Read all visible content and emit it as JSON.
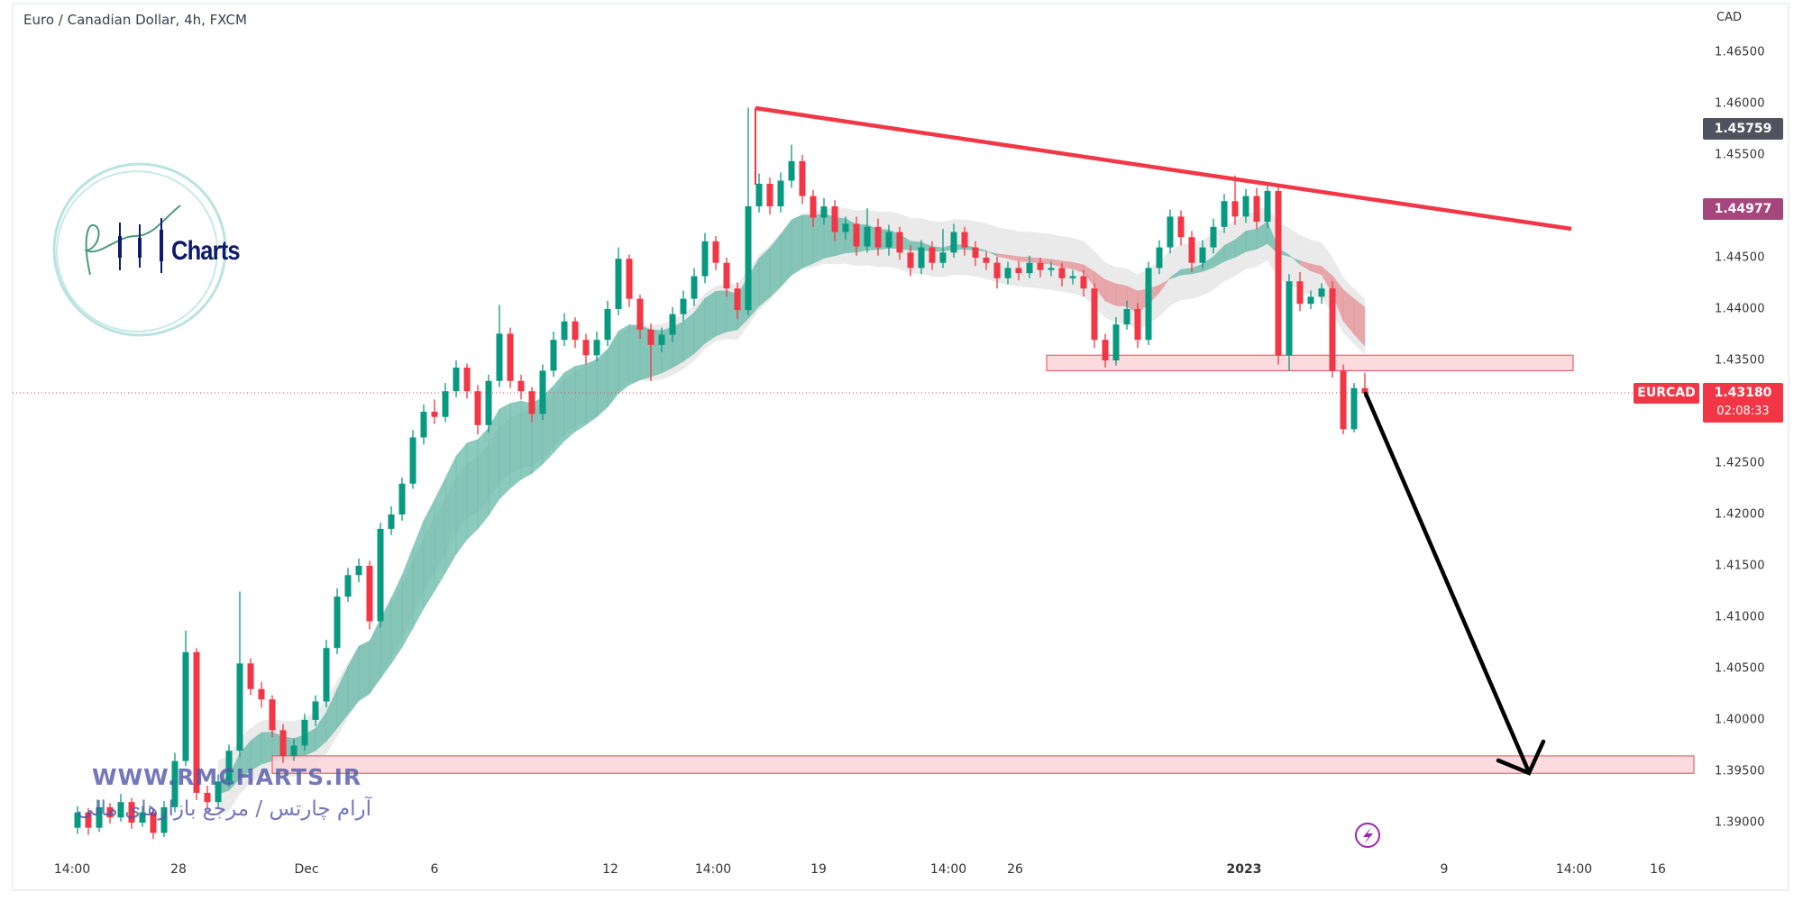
{
  "header": {
    "title": "Euro / Canadian Dollar, 4h, FXCM"
  },
  "price_axis": {
    "currency": "CAD",
    "labels": [
      "1.46500",
      "1.46000",
      "1.45500",
      "1.44500",
      "1.44000",
      "1.43500",
      "1.42500",
      "1.42000",
      "1.41500",
      "1.41000",
      "1.40500",
      "1.40000",
      "1.39500",
      "1.39000"
    ],
    "marker_high": {
      "value": "1.45759",
      "color": "#50535e"
    },
    "marker_indicator": {
      "value": "1.44977",
      "color": "#a5467d"
    },
    "symbol": "EURCAD",
    "last_price": "1.43180",
    "countdown": "02:08:33"
  },
  "time_axis": {
    "labels": [
      "14:00",
      "28",
      "Dec",
      "6",
      "12",
      "14:00",
      "19",
      "14:00",
      "26",
      "2023",
      "9",
      "14:00",
      "16"
    ]
  },
  "watermark": {
    "url": "WWW.RMCHARTS.IR",
    "tagline": "آرام چارتس / مرجع بازارهای مالی",
    "logo_text": "Charts",
    "logo_letters": "RM"
  },
  "icons": {
    "events": "lightning-icon"
  },
  "colors": {
    "up": "#089981",
    "down": "#f23645",
    "trendline": "#f23645",
    "zone_fill": "#fbd5d8",
    "zone_border": "#f0616d",
    "arrow": "#000000",
    "ribbon_up": "#5bb5a2",
    "ribbon_down": "#e58a8f",
    "envelope": "#e3e3e3"
  },
  "chart_data": {
    "type": "candlestick",
    "symbol": "EURCAD",
    "timeframe": "4h",
    "ylim": [
      1.3875,
      1.4675
    ],
    "last_price": 1.4318,
    "candles": [
      [
        1.3895,
        1.3916,
        1.3889,
        1.391
      ],
      [
        1.391,
        1.3914,
        1.3888,
        1.3895
      ],
      [
        1.3895,
        1.3922,
        1.3891,
        1.3915
      ],
      [
        1.3915,
        1.3919,
        1.3899,
        1.3905
      ],
      [
        1.3905,
        1.3928,
        1.3901,
        1.392
      ],
      [
        1.392,
        1.3924,
        1.3894,
        1.39
      ],
      [
        1.39,
        1.3916,
        1.3896,
        1.391
      ],
      [
        1.391,
        1.3913,
        1.3884,
        1.389
      ],
      [
        1.389,
        1.3921,
        1.3886,
        1.3915
      ],
      [
        1.3915,
        1.3968,
        1.391,
        1.396
      ],
      [
        1.396,
        1.4087,
        1.3955,
        1.4066
      ],
      [
        1.4066,
        1.407,
        1.3922,
        1.3929
      ],
      [
        1.3929,
        1.3936,
        1.3914,
        1.392
      ],
      [
        1.392,
        1.3947,
        1.3915,
        1.394
      ],
      [
        1.394,
        1.3976,
        1.3935,
        1.397
      ],
      [
        1.397,
        1.4125,
        1.3964,
        1.4055
      ],
      [
        1.4055,
        1.406,
        1.4024,
        1.403
      ],
      [
        1.403,
        1.4037,
        1.4012,
        1.402
      ],
      [
        1.402,
        1.4024,
        1.3983,
        1.399
      ],
      [
        1.399,
        1.3996,
        1.3958,
        1.3965
      ],
      [
        1.3965,
        1.3982,
        1.396,
        1.3975
      ],
      [
        1.3975,
        1.4006,
        1.397,
        1.4
      ],
      [
        1.4,
        1.4024,
        1.3994,
        1.4018
      ],
      [
        1.4018,
        1.4078,
        1.4012,
        1.407
      ],
      [
        1.407,
        1.4128,
        1.4064,
        1.412
      ],
      [
        1.412,
        1.4148,
        1.4115,
        1.4141
      ],
      [
        1.4141,
        1.4157,
        1.4134,
        1.415
      ],
      [
        1.415,
        1.4155,
        1.4088,
        1.4096
      ],
      [
        1.4096,
        1.4192,
        1.409,
        1.4186
      ],
      [
        1.4186,
        1.4208,
        1.418,
        1.42
      ],
      [
        1.42,
        1.4236,
        1.4194,
        1.423
      ],
      [
        1.423,
        1.4282,
        1.4225,
        1.4275
      ],
      [
        1.4275,
        1.4307,
        1.4268,
        1.43
      ],
      [
        1.43,
        1.4312,
        1.4288,
        1.4295
      ],
      [
        1.4295,
        1.4328,
        1.429,
        1.432
      ],
      [
        1.432,
        1.435,
        1.4314,
        1.4343
      ],
      [
        1.4343,
        1.4347,
        1.4313,
        1.432
      ],
      [
        1.432,
        1.4326,
        1.4278,
        1.4287
      ],
      [
        1.4287,
        1.4336,
        1.428,
        1.433
      ],
      [
        1.433,
        1.4404,
        1.4324,
        1.4376
      ],
      [
        1.4376,
        1.4382,
        1.4323,
        1.433
      ],
      [
        1.433,
        1.4336,
        1.4312,
        1.432
      ],
      [
        1.432,
        1.4324,
        1.429,
        1.4298
      ],
      [
        1.4298,
        1.4346,
        1.4292,
        1.434
      ],
      [
        1.434,
        1.4378,
        1.4334,
        1.437
      ],
      [
        1.437,
        1.4396,
        1.4364,
        1.4388
      ],
      [
        1.4388,
        1.4392,
        1.4362,
        1.437
      ],
      [
        1.437,
        1.4376,
        1.4346,
        1.4355
      ],
      [
        1.4355,
        1.4378,
        1.4349,
        1.437
      ],
      [
        1.437,
        1.4408,
        1.4364,
        1.44
      ],
      [
        1.44,
        1.446,
        1.4394,
        1.4449
      ],
      [
        1.4449,
        1.4453,
        1.4402,
        1.441
      ],
      [
        1.441,
        1.4414,
        1.4371,
        1.438
      ],
      [
        1.438,
        1.4386,
        1.433,
        1.4365
      ],
      [
        1.4365,
        1.4382,
        1.4358,
        1.4375
      ],
      [
        1.4375,
        1.4402,
        1.4368,
        1.4395
      ],
      [
        1.4395,
        1.4418,
        1.4388,
        1.441
      ],
      [
        1.441,
        1.444,
        1.4403,
        1.4432
      ],
      [
        1.4432,
        1.4474,
        1.4425,
        1.4466
      ],
      [
        1.4466,
        1.4471,
        1.4438,
        1.4445
      ],
      [
        1.4445,
        1.445,
        1.4412,
        1.442
      ],
      [
        1.442,
        1.4426,
        1.439,
        1.4399
      ],
      [
        1.4399,
        1.4596,
        1.4394,
        1.45
      ],
      [
        1.45,
        1.4532,
        1.4494,
        1.4522
      ],
      [
        1.4522,
        1.4528,
        1.4492,
        1.45
      ],
      [
        1.45,
        1.4533,
        1.4494,
        1.4525
      ],
      [
        1.4525,
        1.456,
        1.4518,
        1.4544
      ],
      [
        1.4544,
        1.455,
        1.4502,
        1.451
      ],
      [
        1.451,
        1.4516,
        1.448,
        1.4489
      ],
      [
        1.4489,
        1.4508,
        1.4482,
        1.45
      ],
      [
        1.45,
        1.4506,
        1.4466,
        1.4475
      ],
      [
        1.4475,
        1.449,
        1.4468,
        1.4483
      ],
      [
        1.4483,
        1.449,
        1.4452,
        1.4461
      ],
      [
        1.4461,
        1.4498,
        1.4455,
        1.448
      ],
      [
        1.448,
        1.4488,
        1.4452,
        1.446
      ],
      [
        1.446,
        1.4482,
        1.4452,
        1.4475
      ],
      [
        1.4475,
        1.448,
        1.4448,
        1.4455
      ],
      [
        1.4455,
        1.4462,
        1.4432,
        1.444
      ],
      [
        1.444,
        1.4467,
        1.4434,
        1.446
      ],
      [
        1.446,
        1.4466,
        1.4438,
        1.4445
      ],
      [
        1.4445,
        1.4478,
        1.444,
        1.4455
      ],
      [
        1.4455,
        1.4483,
        1.445,
        1.4475
      ],
      [
        1.4475,
        1.448,
        1.4452,
        1.446
      ],
      [
        1.446,
        1.4466,
        1.4442,
        1.445
      ],
      [
        1.445,
        1.4456,
        1.4438,
        1.4445
      ],
      [
        1.4445,
        1.4451,
        1.442,
        1.443
      ],
      [
        1.443,
        1.4446,
        1.4424,
        1.444
      ],
      [
        1.444,
        1.4446,
        1.4428,
        1.4435
      ],
      [
        1.4435,
        1.4452,
        1.443,
        1.4445
      ],
      [
        1.4445,
        1.445,
        1.4431,
        1.4438
      ],
      [
        1.4438,
        1.4446,
        1.4432,
        1.444
      ],
      [
        1.444,
        1.4445,
        1.4422,
        1.443
      ],
      [
        1.443,
        1.4438,
        1.4424,
        1.4432
      ],
      [
        1.4432,
        1.4438,
        1.4412,
        1.442
      ],
      [
        1.442,
        1.4425,
        1.4362,
        1.437
      ],
      [
        1.437,
        1.4376,
        1.4343,
        1.435
      ],
      [
        1.435,
        1.4392,
        1.4345,
        1.4385
      ],
      [
        1.4385,
        1.4408,
        1.438,
        1.44
      ],
      [
        1.44,
        1.4406,
        1.4362,
        1.437
      ],
      [
        1.437,
        1.4446,
        1.4365,
        1.444
      ],
      [
        1.444,
        1.4467,
        1.4434,
        1.446
      ],
      [
        1.446,
        1.4497,
        1.4454,
        1.449
      ],
      [
        1.449,
        1.4496,
        1.4462,
        1.447
      ],
      [
        1.447,
        1.4476,
        1.4436,
        1.4445
      ],
      [
        1.4445,
        1.4467,
        1.444,
        1.446
      ],
      [
        1.446,
        1.4488,
        1.4454,
        1.448
      ],
      [
        1.448,
        1.4512,
        1.4474,
        1.4505
      ],
      [
        1.4505,
        1.453,
        1.4482,
        1.449
      ],
      [
        1.449,
        1.4517,
        1.4484,
        1.451
      ],
      [
        1.451,
        1.4518,
        1.4478,
        1.4485
      ],
      [
        1.4485,
        1.452,
        1.4479,
        1.4515
      ],
      [
        1.4515,
        1.4521,
        1.4346,
        1.4355
      ],
      [
        1.4355,
        1.4434,
        1.434,
        1.4427
      ],
      [
        1.4427,
        1.4436,
        1.4398,
        1.4405
      ],
      [
        1.4405,
        1.4418,
        1.44,
        1.4412
      ],
      [
        1.4412,
        1.4425,
        1.4405,
        1.442
      ],
      [
        1.442,
        1.4427,
        1.4333,
        1.434
      ],
      [
        1.434,
        1.4346,
        1.4278,
        1.4283
      ],
      [
        1.4283,
        1.4328,
        1.428,
        1.4323
      ],
      [
        1.4323,
        1.4338,
        1.4314,
        1.4318
      ]
    ],
    "zones": [
      {
        "top": 1.4355,
        "bottom": 1.434
      },
      {
        "top": 1.3965,
        "bottom": 1.3948
      }
    ]
  }
}
